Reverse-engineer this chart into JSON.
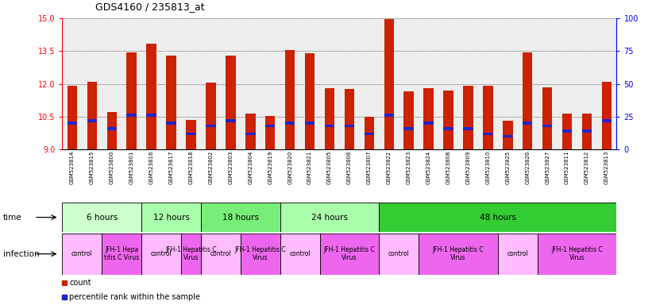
{
  "title": "GDS4160 / 235813_at",
  "samples": [
    "GSM523814",
    "GSM523815",
    "GSM523800",
    "GSM523801",
    "GSM523816",
    "GSM523817",
    "GSM523818",
    "GSM523802",
    "GSM523803",
    "GSM523804",
    "GSM523819",
    "GSM523820",
    "GSM523821",
    "GSM523805",
    "GSM523806",
    "GSM523807",
    "GSM523822",
    "GSM523823",
    "GSM523824",
    "GSM523808",
    "GSM523809",
    "GSM523810",
    "GSM523825",
    "GSM523826",
    "GSM523827",
    "GSM523811",
    "GSM523812",
    "GSM523813"
  ],
  "counts": [
    11.9,
    12.1,
    10.7,
    13.45,
    13.85,
    13.3,
    10.35,
    12.05,
    13.3,
    10.65,
    10.55,
    13.55,
    13.4,
    11.8,
    11.75,
    10.5,
    14.95,
    11.65,
    11.8,
    11.7,
    11.9,
    11.9,
    10.3,
    13.45,
    11.85,
    10.65,
    10.65,
    12.1
  ],
  "percentiles": [
    20,
    22,
    16,
    26,
    26,
    20,
    12,
    18,
    22,
    12,
    18,
    20,
    20,
    18,
    18,
    12,
    26,
    16,
    20,
    16,
    16,
    12,
    10,
    20,
    18,
    14,
    14,
    22
  ],
  "ymin": 9.0,
  "ymax": 15.0,
  "yticks": [
    9,
    10.5,
    12,
    13.5,
    15
  ],
  "right_yticks": [
    0,
    25,
    50,
    75,
    100
  ],
  "bar_color": "#cc2200",
  "blue_color": "#2222cc",
  "bg_color": "#eeeeee",
  "time_blocks": [
    {
      "label": "6 hours",
      "start": 0,
      "end": 4,
      "color": "#ccffcc"
    },
    {
      "label": "12 hours",
      "start": 4,
      "end": 7,
      "color": "#aaffaa"
    },
    {
      "label": "18 hours",
      "start": 7,
      "end": 11,
      "color": "#77ee77"
    },
    {
      "label": "24 hours",
      "start": 11,
      "end": 16,
      "color": "#aaffaa"
    },
    {
      "label": "48 hours",
      "start": 16,
      "end": 28,
      "color": "#33cc33"
    }
  ],
  "infection_blocks": [
    {
      "label": "control",
      "start": 0,
      "end": 2,
      "color": "#ffbbff"
    },
    {
      "label": "JFH-1 Hepa\ntitis C Virus",
      "start": 2,
      "end": 4,
      "color": "#ee66ee"
    },
    {
      "label": "control",
      "start": 4,
      "end": 6,
      "color": "#ffbbff"
    },
    {
      "label": "JFH-1 Hepatitis C\nVirus",
      "start": 6,
      "end": 7,
      "color": "#ee66ee"
    },
    {
      "label": "control",
      "start": 7,
      "end": 9,
      "color": "#ffbbff"
    },
    {
      "label": "JFH-1 Hepatitis C\nVirus",
      "start": 9,
      "end": 11,
      "color": "#ee66ee"
    },
    {
      "label": "control",
      "start": 11,
      "end": 13,
      "color": "#ffbbff"
    },
    {
      "label": "JFH-1 Hepatitis C\nVirus",
      "start": 13,
      "end": 16,
      "color": "#ee66ee"
    },
    {
      "label": "control",
      "start": 16,
      "end": 18,
      "color": "#ffbbff"
    },
    {
      "label": "JFH-1 Hepatitis C\nVirus",
      "start": 18,
      "end": 22,
      "color": "#ee66ee"
    },
    {
      "label": "control",
      "start": 22,
      "end": 24,
      "color": "#ffbbff"
    },
    {
      "label": "JFH-1 Hepatitis C\nVirus",
      "start": 24,
      "end": 28,
      "color": "#ee66ee"
    }
  ],
  "n_samples": 28
}
